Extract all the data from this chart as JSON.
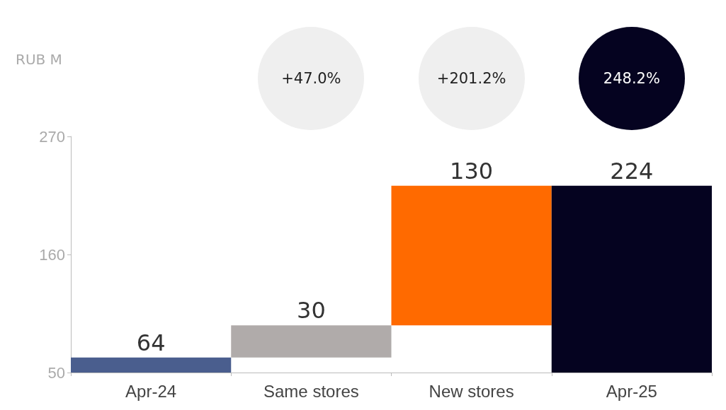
{
  "chart_data": {
    "type": "bar",
    "ylabel": "RUB M",
    "categories": [
      "Apr-24",
      "Same stores",
      "New stores",
      "Apr-25"
    ],
    "values": [
      64,
      30,
      130,
      224
    ],
    "base": [
      null,
      64,
      94,
      null
    ],
    "colors": [
      "#4a5e8e",
      "#b0abaa",
      "#ff6a00",
      "#050320"
    ],
    "ylim": [
      50,
      270
    ],
    "yticks": [
      50,
      160,
      270
    ],
    "data_labels": true,
    "annotations": [
      "+47.0%",
      "+201.2%",
      "248.2%"
    ]
  }
}
